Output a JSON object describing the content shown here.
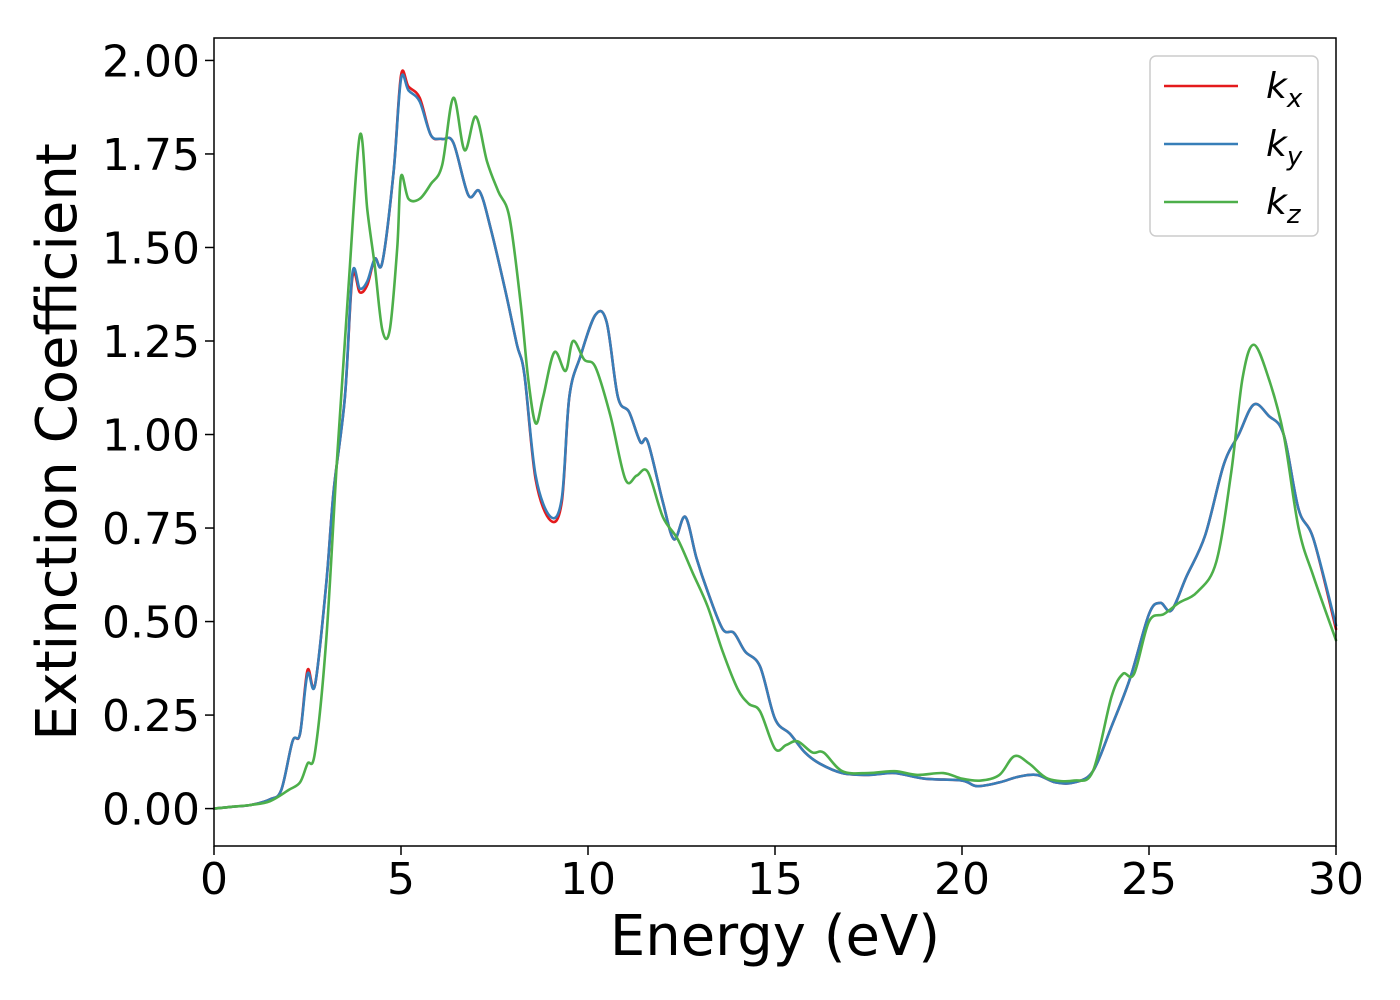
{
  "chart_data": {
    "type": "line",
    "xlabel": "Energy (eV)",
    "ylabel": "Extinction Coefficient",
    "xlim": [
      0,
      30
    ],
    "ylim": [
      -0.1,
      2.06
    ],
    "x_ticks": [
      0,
      5,
      10,
      15,
      20,
      25,
      30
    ],
    "x_tick_labels": [
      "0",
      "5",
      "10",
      "15",
      "20",
      "25",
      "30"
    ],
    "y_ticks": [
      0.0,
      0.25,
      0.5,
      0.75,
      1.0,
      1.25,
      1.5,
      1.75,
      2.0
    ],
    "y_tick_labels": [
      "0.00",
      "0.25",
      "0.50",
      "0.75",
      "1.00",
      "1.25",
      "1.50",
      "1.75",
      "2.00"
    ],
    "grid": false,
    "legend_position": "top-right",
    "series": [
      {
        "name": "kx",
        "label_main": "k",
        "label_sub": "x",
        "color": "#e41a1c",
        "points": [
          [
            0,
            0
          ],
          [
            0.5,
            0.005
          ],
          [
            1,
            0.01
          ],
          [
            1.5,
            0.025
          ],
          [
            1.8,
            0.05
          ],
          [
            2.1,
            0.18
          ],
          [
            2.3,
            0.2
          ],
          [
            2.5,
            0.37
          ],
          [
            2.7,
            0.33
          ],
          [
            3,
            0.6
          ],
          [
            3.2,
            0.85
          ],
          [
            3.5,
            1.1
          ],
          [
            3.7,
            1.42
          ],
          [
            3.9,
            1.38
          ],
          [
            4.1,
            1.4
          ],
          [
            4.3,
            1.47
          ],
          [
            4.5,
            1.46
          ],
          [
            4.8,
            1.7
          ],
          [
            5.0,
            1.96
          ],
          [
            5.2,
            1.93
          ],
          [
            5.5,
            1.9
          ],
          [
            5.8,
            1.8
          ],
          [
            6.1,
            1.79
          ],
          [
            6.4,
            1.78
          ],
          [
            6.8,
            1.64
          ],
          [
            7.1,
            1.65
          ],
          [
            7.4,
            1.55
          ],
          [
            7.8,
            1.38
          ],
          [
            8.1,
            1.24
          ],
          [
            8.3,
            1.16
          ],
          [
            8.6,
            0.88
          ],
          [
            9.0,
            0.77
          ],
          [
            9.3,
            0.82
          ],
          [
            9.5,
            1.1
          ],
          [
            9.8,
            1.21
          ],
          [
            10.2,
            1.32
          ],
          [
            10.5,
            1.3
          ],
          [
            10.8,
            1.1
          ],
          [
            11.1,
            1.06
          ],
          [
            11.4,
            0.98
          ],
          [
            11.6,
            0.98
          ],
          [
            12.0,
            0.82
          ],
          [
            12.3,
            0.72
          ],
          [
            12.6,
            0.78
          ],
          [
            12.9,
            0.67
          ],
          [
            13.2,
            0.58
          ],
          [
            13.6,
            0.48
          ],
          [
            13.9,
            0.47
          ],
          [
            14.2,
            0.42
          ],
          [
            14.6,
            0.38
          ],
          [
            15.0,
            0.24
          ],
          [
            15.4,
            0.2
          ],
          [
            15.8,
            0.15
          ],
          [
            16.2,
            0.12
          ],
          [
            16.8,
            0.095
          ],
          [
            17.5,
            0.09
          ],
          [
            18.2,
            0.095
          ],
          [
            19.0,
            0.08
          ],
          [
            20.0,
            0.075
          ],
          [
            20.4,
            0.06
          ],
          [
            21.0,
            0.07
          ],
          [
            21.5,
            0.085
          ],
          [
            22.0,
            0.09
          ],
          [
            22.5,
            0.07
          ],
          [
            23.0,
            0.07
          ],
          [
            23.5,
            0.1
          ],
          [
            24.0,
            0.22
          ],
          [
            24.5,
            0.35
          ],
          [
            25.0,
            0.52
          ],
          [
            25.3,
            0.55
          ],
          [
            25.6,
            0.53
          ],
          [
            26.0,
            0.62
          ],
          [
            26.5,
            0.73
          ],
          [
            27.0,
            0.92
          ],
          [
            27.4,
            1.0
          ],
          [
            27.8,
            1.08
          ],
          [
            28.2,
            1.05
          ],
          [
            28.6,
            1.0
          ],
          [
            29.0,
            0.8
          ],
          [
            29.4,
            0.72
          ],
          [
            30.0,
            0.48
          ]
        ]
      },
      {
        "name": "ky",
        "label_main": "k",
        "label_sub": "y",
        "color": "#377eb8",
        "points": [
          [
            0,
            0
          ],
          [
            0.5,
            0.005
          ],
          [
            1,
            0.01
          ],
          [
            1.5,
            0.025
          ],
          [
            1.8,
            0.05
          ],
          [
            2.1,
            0.18
          ],
          [
            2.3,
            0.2
          ],
          [
            2.5,
            0.36
          ],
          [
            2.7,
            0.33
          ],
          [
            3,
            0.6
          ],
          [
            3.2,
            0.85
          ],
          [
            3.5,
            1.1
          ],
          [
            3.7,
            1.43
          ],
          [
            3.9,
            1.39
          ],
          [
            4.1,
            1.41
          ],
          [
            4.3,
            1.47
          ],
          [
            4.5,
            1.46
          ],
          [
            4.8,
            1.7
          ],
          [
            5.0,
            1.95
          ],
          [
            5.2,
            1.92
          ],
          [
            5.5,
            1.89
          ],
          [
            5.8,
            1.8
          ],
          [
            6.1,
            1.79
          ],
          [
            6.4,
            1.78
          ],
          [
            6.8,
            1.64
          ],
          [
            7.1,
            1.65
          ],
          [
            7.4,
            1.55
          ],
          [
            7.8,
            1.38
          ],
          [
            8.1,
            1.24
          ],
          [
            8.3,
            1.16
          ],
          [
            8.6,
            0.89
          ],
          [
            9.0,
            0.78
          ],
          [
            9.3,
            0.83
          ],
          [
            9.5,
            1.1
          ],
          [
            9.8,
            1.21
          ],
          [
            10.2,
            1.32
          ],
          [
            10.5,
            1.3
          ],
          [
            10.8,
            1.1
          ],
          [
            11.1,
            1.06
          ],
          [
            11.4,
            0.98
          ],
          [
            11.6,
            0.98
          ],
          [
            12.0,
            0.82
          ],
          [
            12.3,
            0.72
          ],
          [
            12.6,
            0.78
          ],
          [
            12.9,
            0.67
          ],
          [
            13.2,
            0.58
          ],
          [
            13.6,
            0.48
          ],
          [
            13.9,
            0.47
          ],
          [
            14.2,
            0.42
          ],
          [
            14.6,
            0.38
          ],
          [
            15.0,
            0.24
          ],
          [
            15.4,
            0.2
          ],
          [
            15.8,
            0.15
          ],
          [
            16.2,
            0.12
          ],
          [
            16.8,
            0.095
          ],
          [
            17.5,
            0.09
          ],
          [
            18.2,
            0.095
          ],
          [
            19.0,
            0.08
          ],
          [
            20.0,
            0.075
          ],
          [
            20.4,
            0.06
          ],
          [
            21.0,
            0.07
          ],
          [
            21.5,
            0.085
          ],
          [
            22.0,
            0.09
          ],
          [
            22.5,
            0.07
          ],
          [
            23.0,
            0.07
          ],
          [
            23.5,
            0.1
          ],
          [
            24.0,
            0.22
          ],
          [
            24.5,
            0.35
          ],
          [
            25.0,
            0.52
          ],
          [
            25.3,
            0.55
          ],
          [
            25.6,
            0.53
          ],
          [
            26.0,
            0.62
          ],
          [
            26.5,
            0.73
          ],
          [
            27.0,
            0.92
          ],
          [
            27.4,
            1.0
          ],
          [
            27.8,
            1.08
          ],
          [
            28.2,
            1.05
          ],
          [
            28.6,
            1.0
          ],
          [
            29.0,
            0.8
          ],
          [
            29.4,
            0.72
          ],
          [
            30.0,
            0.49
          ]
        ]
      },
      {
        "name": "kz",
        "label_main": "k",
        "label_sub": "z",
        "color": "#4daf4a",
        "points": [
          [
            0,
            0
          ],
          [
            0.5,
            0.005
          ],
          [
            1,
            0.01
          ],
          [
            1.5,
            0.02
          ],
          [
            2.0,
            0.05
          ],
          [
            2.3,
            0.07
          ],
          [
            2.5,
            0.12
          ],
          [
            2.7,
            0.15
          ],
          [
            3.0,
            0.45
          ],
          [
            3.3,
            0.95
          ],
          [
            3.6,
            1.4
          ],
          [
            3.9,
            1.8
          ],
          [
            4.1,
            1.6
          ],
          [
            4.3,
            1.45
          ],
          [
            4.5,
            1.28
          ],
          [
            4.7,
            1.28
          ],
          [
            4.9,
            1.5
          ],
          [
            5.0,
            1.69
          ],
          [
            5.2,
            1.63
          ],
          [
            5.5,
            1.63
          ],
          [
            5.8,
            1.67
          ],
          [
            6.1,
            1.72
          ],
          [
            6.4,
            1.9
          ],
          [
            6.7,
            1.76
          ],
          [
            7.0,
            1.85
          ],
          [
            7.3,
            1.73
          ],
          [
            7.6,
            1.65
          ],
          [
            7.9,
            1.58
          ],
          [
            8.2,
            1.35
          ],
          [
            8.4,
            1.15
          ],
          [
            8.6,
            1.03
          ],
          [
            8.8,
            1.1
          ],
          [
            9.1,
            1.22
          ],
          [
            9.4,
            1.17
          ],
          [
            9.6,
            1.25
          ],
          [
            9.9,
            1.2
          ],
          [
            10.2,
            1.18
          ],
          [
            10.6,
            1.05
          ],
          [
            11.0,
            0.88
          ],
          [
            11.3,
            0.89
          ],
          [
            11.6,
            0.9
          ],
          [
            12.0,
            0.78
          ],
          [
            12.4,
            0.72
          ],
          [
            12.8,
            0.63
          ],
          [
            13.2,
            0.54
          ],
          [
            13.6,
            0.42
          ],
          [
            14.0,
            0.32
          ],
          [
            14.3,
            0.28
          ],
          [
            14.6,
            0.26
          ],
          [
            15.0,
            0.16
          ],
          [
            15.3,
            0.17
          ],
          [
            15.6,
            0.18
          ],
          [
            16.0,
            0.15
          ],
          [
            16.3,
            0.15
          ],
          [
            16.8,
            0.1
          ],
          [
            17.5,
            0.095
          ],
          [
            18.2,
            0.1
          ],
          [
            18.8,
            0.09
          ],
          [
            19.5,
            0.095
          ],
          [
            20.0,
            0.08
          ],
          [
            20.5,
            0.075
          ],
          [
            21.0,
            0.09
          ],
          [
            21.4,
            0.14
          ],
          [
            21.8,
            0.12
          ],
          [
            22.3,
            0.08
          ],
          [
            23.0,
            0.075
          ],
          [
            23.5,
            0.1
          ],
          [
            24.0,
            0.3
          ],
          [
            24.3,
            0.36
          ],
          [
            24.6,
            0.36
          ],
          [
            25.0,
            0.5
          ],
          [
            25.4,
            0.52
          ],
          [
            25.8,
            0.55
          ],
          [
            26.3,
            0.58
          ],
          [
            26.8,
            0.66
          ],
          [
            27.2,
            0.9
          ],
          [
            27.5,
            1.15
          ],
          [
            27.8,
            1.24
          ],
          [
            28.2,
            1.15
          ],
          [
            28.6,
            1.0
          ],
          [
            29.0,
            0.75
          ],
          [
            29.4,
            0.62
          ],
          [
            30.0,
            0.45
          ]
        ]
      }
    ]
  }
}
